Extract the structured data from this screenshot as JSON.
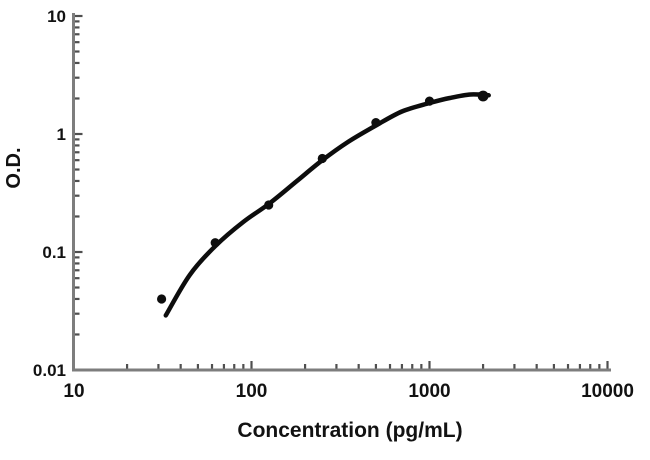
{
  "figure": {
    "description": "ELISA standard curve plot, log-log axes, single black fitted curve with filled circular data points"
  },
  "chart_data": {
    "type": "scatter",
    "title": "",
    "xlabel": "Concentration (pg/mL)",
    "ylabel": "O.D.",
    "x_scale": "log",
    "y_scale": "log",
    "xlim": [
      10,
      10000
    ],
    "ylim": [
      0.01,
      10
    ],
    "x_ticks": [
      10,
      100,
      1000,
      10000
    ],
    "x_tick_labels": [
      "10",
      "100",
      "1000",
      "10000"
    ],
    "y_ticks": [
      10,
      1,
      0.1,
      0.01
    ],
    "y_tick_labels": [
      "10",
      "1",
      "0.1",
      "0.01"
    ],
    "grid": false,
    "legend": "none",
    "series": [
      {
        "name": "standard-curve-points",
        "marker": "filled-circle",
        "x": [
          31.25,
          62.5,
          125,
          250,
          500,
          1000,
          2000
        ],
        "y": [
          0.04,
          0.12,
          0.25,
          0.62,
          1.25,
          1.9,
          2.1
        ]
      }
    ],
    "fit_curve": [
      [
        33,
        0.029
      ],
      [
        45,
        0.064
      ],
      [
        62.5,
        0.112
      ],
      [
        90,
        0.18
      ],
      [
        125,
        0.255
      ],
      [
        180,
        0.4
      ],
      [
        250,
        0.6
      ],
      [
        350,
        0.86
      ],
      [
        500,
        1.18
      ],
      [
        700,
        1.55
      ],
      [
        1000,
        1.83
      ],
      [
        1300,
        2.02
      ],
      [
        1700,
        2.16
      ],
      [
        2150,
        2.13
      ]
    ],
    "colors": {
      "curve": "#0d0d0d",
      "points": "#0d0d0d",
      "axis": "#7d7d7d",
      "tick": "#4f4f4f",
      "text": "#121212",
      "background": "#ffffff"
    }
  }
}
